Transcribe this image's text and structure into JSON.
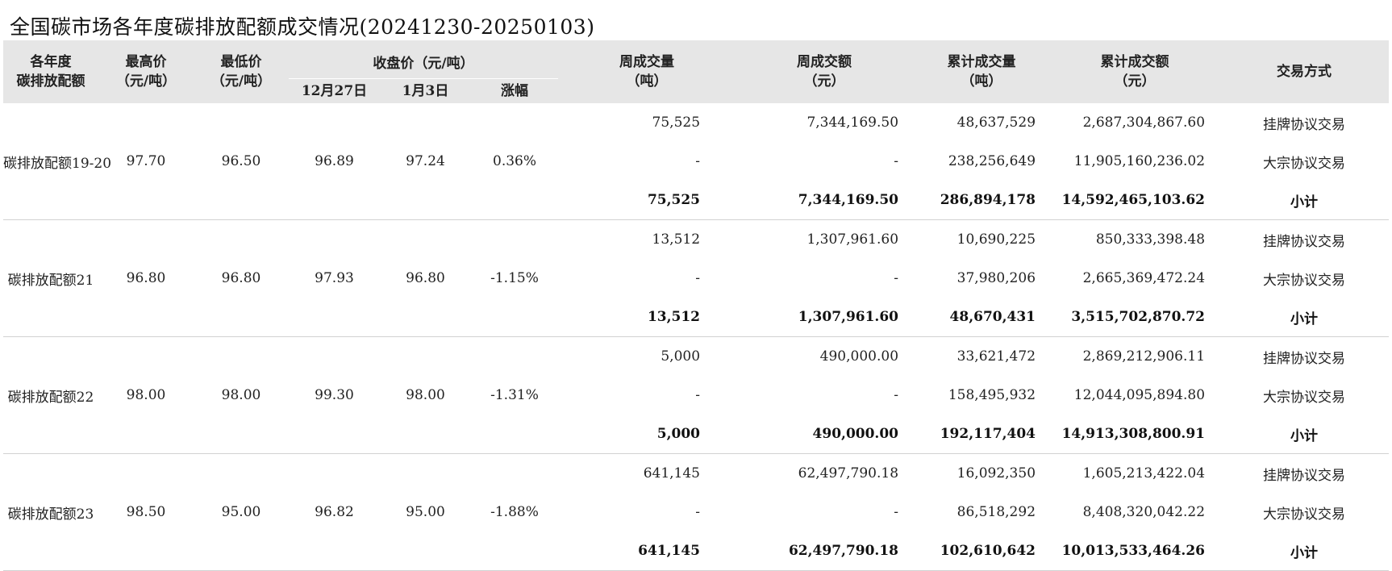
{
  "title": "全国碳市场各年度碳排放配额成交情况(20241230-20250103)",
  "headers": {
    "allowance": [
      "各年度",
      "碳排放配额"
    ],
    "high": [
      "最高价",
      "（元/吨）"
    ],
    "low": [
      "最低价",
      "（元/吨）"
    ],
    "close_group": "收盘价（元/吨）",
    "close_prev": "12月27日",
    "close_curr": "1月3日",
    "change": "涨幅",
    "week_volume": [
      "周成交量",
      "（吨）"
    ],
    "week_amount": [
      "周成交额",
      "（元）"
    ],
    "cum_volume": [
      "累计成交量",
      "（吨）"
    ],
    "cum_amount": [
      "累计成交额",
      "（元）"
    ],
    "mode": "交易方式"
  },
  "groups": [
    {
      "name": "碳排放配额19-20",
      "high": "97.70",
      "low": "96.50",
      "close_prev": "96.89",
      "close_curr": "97.24",
      "change": "0.36%",
      "rows": [
        {
          "week_volume": "75,525",
          "week_amount": "7,344,169.50",
          "cum_volume": "48,637,529",
          "cum_amount": "2,687,304,867.60",
          "mode": "挂牌协议交易"
        },
        {
          "week_volume": "-",
          "week_amount": "-",
          "cum_volume": "238,256,649",
          "cum_amount": "11,905,160,236.02",
          "mode": "大宗协议交易"
        },
        {
          "week_volume": "75,525",
          "week_amount": "7,344,169.50",
          "cum_volume": "286,894,178",
          "cum_amount": "14,592,465,103.62",
          "mode": "小计"
        }
      ]
    },
    {
      "name": "碳排放配额21",
      "high": "96.80",
      "low": "96.80",
      "close_prev": "97.93",
      "close_curr": "96.80",
      "change": "-1.15%",
      "rows": [
        {
          "week_volume": "13,512",
          "week_amount": "1,307,961.60",
          "cum_volume": "10,690,225",
          "cum_amount": "850,333,398.48",
          "mode": "挂牌协议交易"
        },
        {
          "week_volume": "-",
          "week_amount": "-",
          "cum_volume": "37,980,206",
          "cum_amount": "2,665,369,472.24",
          "mode": "大宗协议交易"
        },
        {
          "week_volume": "13,512",
          "week_amount": "1,307,961.60",
          "cum_volume": "48,670,431",
          "cum_amount": "3,515,702,870.72",
          "mode": "小计"
        }
      ]
    },
    {
      "name": "碳排放配额22",
      "high": "98.00",
      "low": "98.00",
      "close_prev": "99.30",
      "close_curr": "98.00",
      "change": "-1.31%",
      "rows": [
        {
          "week_volume": "5,000",
          "week_amount": "490,000.00",
          "cum_volume": "33,621,472",
          "cum_amount": "2,869,212,906.11",
          "mode": "挂牌协议交易"
        },
        {
          "week_volume": "-",
          "week_amount": "-",
          "cum_volume": "158,495,932",
          "cum_amount": "12,044,095,894.80",
          "mode": "大宗协议交易"
        },
        {
          "week_volume": "5,000",
          "week_amount": "490,000.00",
          "cum_volume": "192,117,404",
          "cum_amount": "14,913,308,800.91",
          "mode": "小计"
        }
      ]
    },
    {
      "name": "碳排放配额23",
      "high": "98.50",
      "low": "95.00",
      "close_prev": "96.82",
      "close_curr": "95.00",
      "change": "-1.88%",
      "rows": [
        {
          "week_volume": "641,145",
          "week_amount": "62,497,790.18",
          "cum_volume": "16,092,350",
          "cum_amount": "1,605,213,422.04",
          "mode": "挂牌协议交易"
        },
        {
          "week_volume": "-",
          "week_amount": "-",
          "cum_volume": "86,518,292",
          "cum_amount": "8,408,320,042.22",
          "mode": "大宗协议交易"
        },
        {
          "week_volume": "641,145",
          "week_amount": "62,497,790.18",
          "cum_volume": "102,610,642",
          "cum_amount": "10,013,533,464.26",
          "mode": "小计"
        }
      ]
    }
  ]
}
